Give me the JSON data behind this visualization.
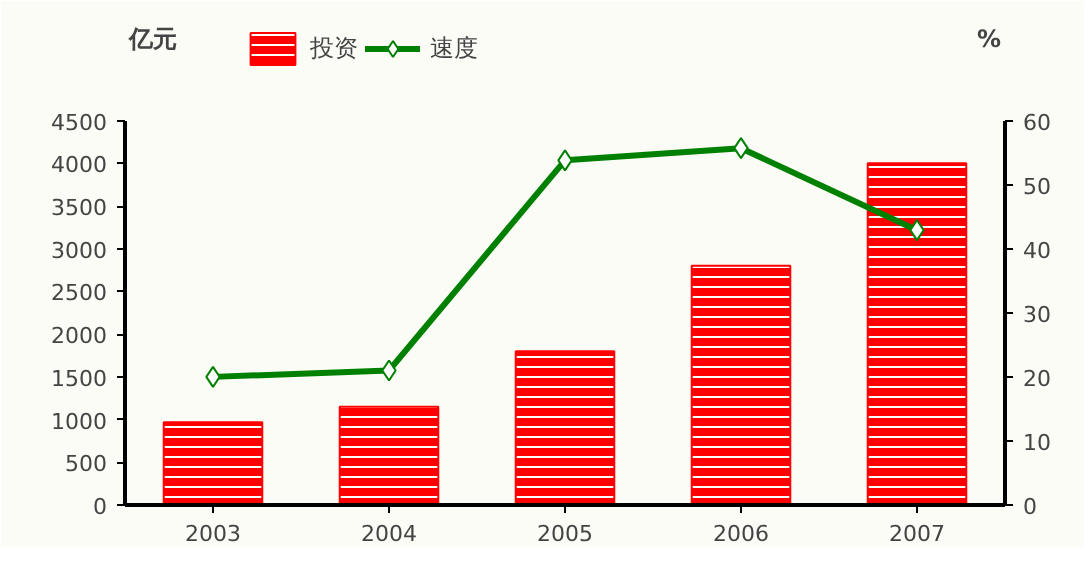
{
  "chart_data": {
    "type": "bar",
    "categories": [
      "2003",
      "2004",
      "2005",
      "2006",
      "2007"
    ],
    "ylabel": "亿元",
    "y2label": "%",
    "series": [
      {
        "name": "投资",
        "color": "#ff0000",
        "values": [
          970,
          1150,
          1800,
          2800,
          4000
        ]
      },
      {
        "name": "速度",
        "type": "line",
        "axis": "y2",
        "color": "#008000",
        "marker": "diamond",
        "values": [
          20,
          21,
          53.8,
          55.7,
          42.9
        ]
      }
    ],
    "ylim": [
      0,
      4500
    ],
    "yticks": [
      0,
      500,
      1000,
      1500,
      2000,
      2500,
      3000,
      3500,
      4000,
      4500
    ],
    "y2lim": [
      0,
      60
    ],
    "y2ticks": [
      0,
      10,
      20,
      30,
      40,
      50,
      60
    ],
    "legend": "top",
    "grid": false
  }
}
